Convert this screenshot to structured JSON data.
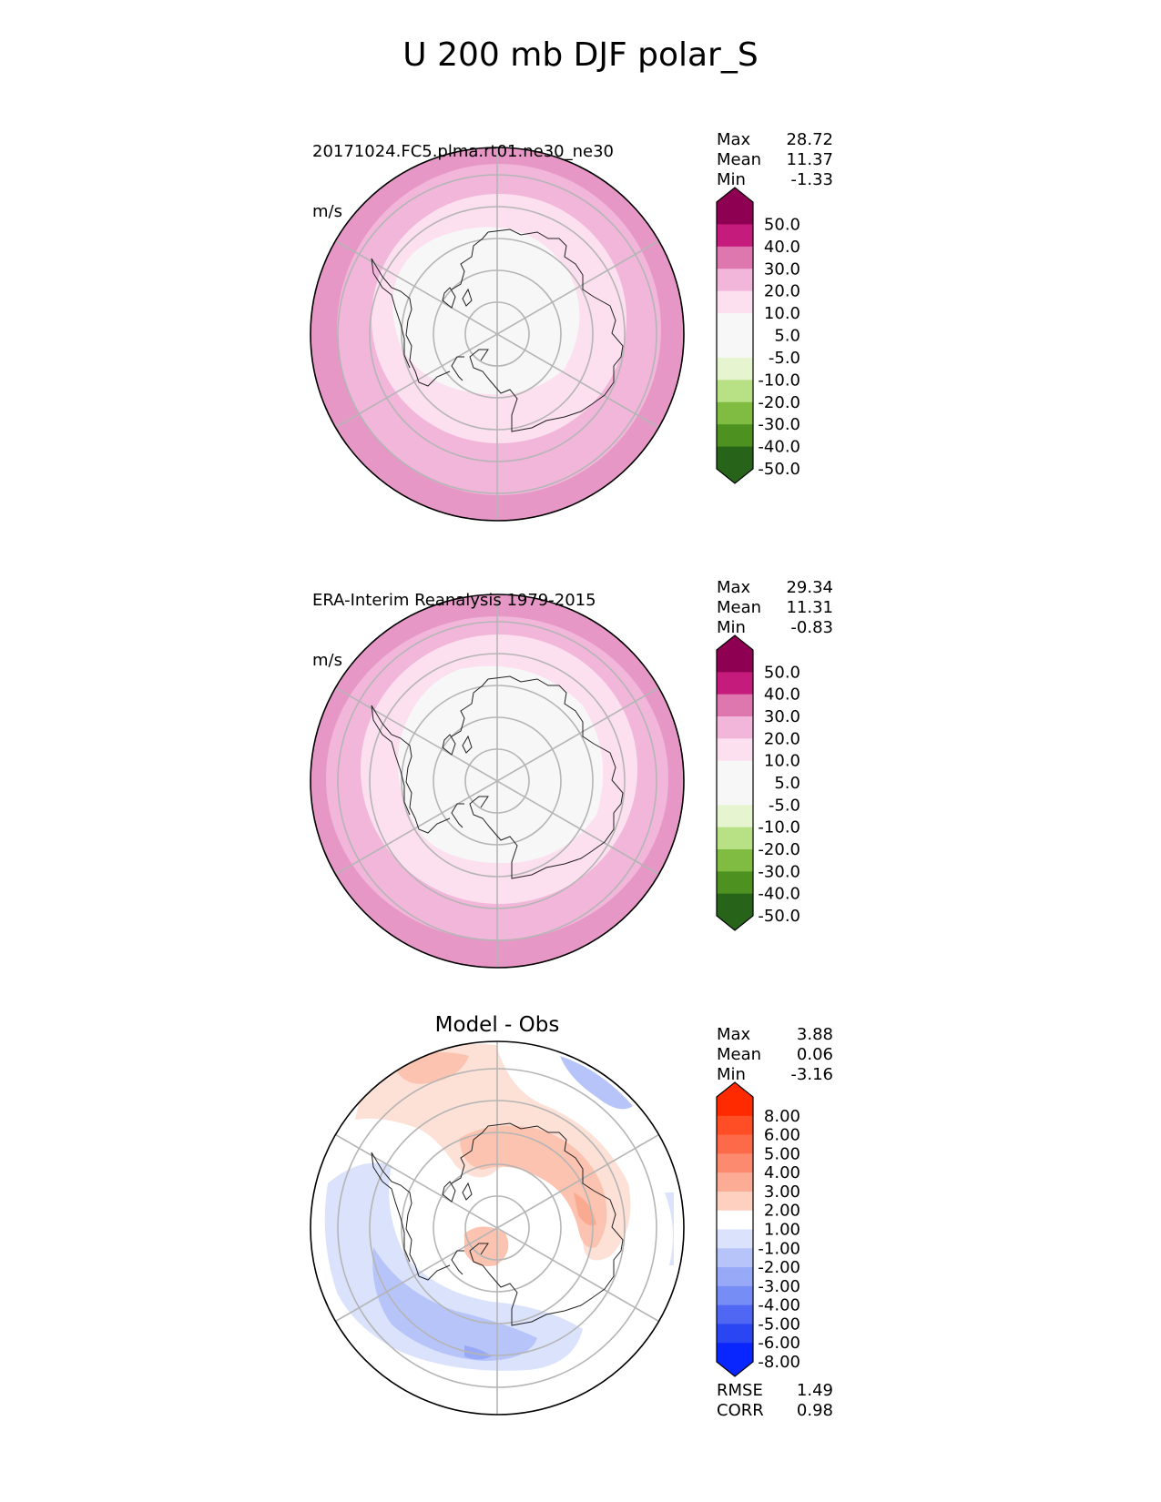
{
  "title": "U 200 mb DJF polar_S",
  "chart_data": [
    {
      "type": "heatmap",
      "projection": "south-polar-stereographic",
      "title": "20171024.FC5.plma.rt01.ne30_ne30",
      "units": "m/s",
      "stats": [
        {
          "label": "Max",
          "value": "28.72"
        },
        {
          "label": "Mean",
          "value": "11.37"
        },
        {
          "label": "Min",
          "value": "-1.33"
        }
      ],
      "colorbar": {
        "ticks": [
          "50.0",
          "40.0",
          "30.0",
          "20.0",
          "10.0",
          "5.0",
          "-5.0",
          "-10.0",
          "-20.0",
          "-30.0",
          "-40.0",
          "-50.0"
        ],
        "colors": [
          "#8e0152",
          "#c51b7d",
          "#de77ae",
          "#f1b6da",
          "#fde0ef",
          "#f7f7f7",
          "#f7f7f7",
          "#e6f5d0",
          "#b8e186",
          "#7fbc41",
          "#4d9221",
          "#276419"
        ],
        "extend": "both"
      },
      "rings": [
        {
          "value": "-5 to 5",
          "color": "#f7f7f7"
        },
        {
          "value": "5 to 10",
          "color": "#fde0ef"
        },
        {
          "value": "10 to 20",
          "color": "#f1b6da"
        },
        {
          "value": "20 to 30",
          "color": "#e797c6"
        }
      ]
    },
    {
      "type": "heatmap",
      "projection": "south-polar-stereographic",
      "title": "ERA-Interim Reanalysis 1979-2015",
      "units": "m/s",
      "stats": [
        {
          "label": "Max",
          "value": "29.34"
        },
        {
          "label": "Mean",
          "value": "11.31"
        },
        {
          "label": "Min",
          "value": "-0.83"
        }
      ],
      "colorbar": {
        "ticks": [
          "50.0",
          "40.0",
          "30.0",
          "20.0",
          "10.0",
          "5.0",
          "-5.0",
          "-10.0",
          "-20.0",
          "-30.0",
          "-40.0",
          "-50.0"
        ],
        "colors": [
          "#8e0152",
          "#c51b7d",
          "#de77ae",
          "#f1b6da",
          "#fde0ef",
          "#f7f7f7",
          "#f7f7f7",
          "#e6f5d0",
          "#b8e186",
          "#7fbc41",
          "#4d9221",
          "#276419"
        ],
        "extend": "both"
      },
      "rings": [
        {
          "value": "-5 to 5",
          "color": "#f7f7f7"
        },
        {
          "value": "5 to 10",
          "color": "#fde0ef"
        },
        {
          "value": "10 to 20",
          "color": "#f1b6da"
        },
        {
          "value": "20 to 30",
          "color": "#e797c6"
        }
      ]
    },
    {
      "type": "heatmap",
      "projection": "south-polar-stereographic",
      "title": "Model - Obs",
      "stats": [
        {
          "label": "Max",
          "value": "3.88"
        },
        {
          "label": "Mean",
          "value": "0.06"
        },
        {
          "label": "Min",
          "value": "-3.16"
        }
      ],
      "metrics": [
        {
          "label": "RMSE",
          "value": "1.49"
        },
        {
          "label": "CORR",
          "value": "0.98"
        }
      ],
      "colorbar": {
        "ticks": [
          "8.00",
          "6.00",
          "5.00",
          "4.00",
          "3.00",
          "2.00",
          "1.00",
          "-1.00",
          "-2.00",
          "-3.00",
          "-4.00",
          "-5.00",
          "-6.00",
          "-8.00"
        ],
        "colors": [
          "#ff2a00",
          "#ff4d26",
          "#fc6a4a",
          "#fb8a6e",
          "#fcab94",
          "#fdd0c0",
          "#ffffff",
          "#dbe2fc",
          "#b7c4fa",
          "#98a9f7",
          "#768df5",
          "#4f67f3",
          "#2a46f3",
          "#0a26ff"
        ],
        "extend": "both",
        "extend_colors": {
          "max": "#ff2a00",
          "min": "#0a26ff"
        }
      },
      "colors": {
        "positive_light": "#fde0d6",
        "positive_mid": "#fcc3b0",
        "positive_strong": "#fbaa92",
        "negative_light": "#dbe2fc",
        "negative_mid": "#b7c4fa",
        "negative_strong": "#98a9f7"
      }
    }
  ]
}
